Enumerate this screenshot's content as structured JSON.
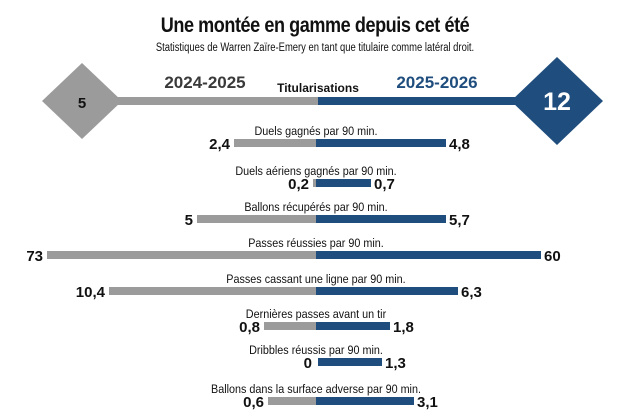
{
  "colors": {
    "season_prev": "#9b9b9b",
    "season_curr": "#1f4e7e",
    "text": "#111111"
  },
  "chart_data": {
    "type": "bar",
    "orientation": "diverging-horizontal",
    "title": "Une montée en gamme depuis cet été",
    "subtitle": "Statistiques de Warren Zaïre-Emery en tant que titulaire comme latéral droit.",
    "series_names": [
      "2024-2025",
      "2025-2026"
    ],
    "header_metric": {
      "label": "Titularisations",
      "values": [
        5,
        12
      ],
      "display": [
        "5",
        "12"
      ]
    },
    "categories": [
      "Duels gagnés par 90 min.",
      "Duels aériens gagnés par 90 min.",
      "Ballons récupérés par 90 min.",
      "Passes réussies par 90 min.",
      "Passes cassant une ligne par 90 min.",
      "Dernières passes avant un tir",
      "Dribbles réussis par 90 min.",
      "Ballons dans la surface adverse par 90 min."
    ],
    "series": [
      {
        "name": "2024-2025",
        "values": [
          2.4,
          0.2,
          5,
          73,
          10.4,
          0.8,
          0,
          0.6
        ],
        "display": [
          "2,4",
          "0,2",
          "5",
          "73",
          "10,4",
          "0,8",
          "0",
          "0,6"
        ]
      },
      {
        "name": "2025-2026",
        "values": [
          4.8,
          0.7,
          5.7,
          60,
          6.3,
          1.8,
          1.3,
          3.1
        ],
        "display": [
          "4,8",
          "0,7",
          "5,7",
          "60",
          "6,3",
          "1,8",
          "1,3",
          "3,1"
        ]
      }
    ]
  }
}
